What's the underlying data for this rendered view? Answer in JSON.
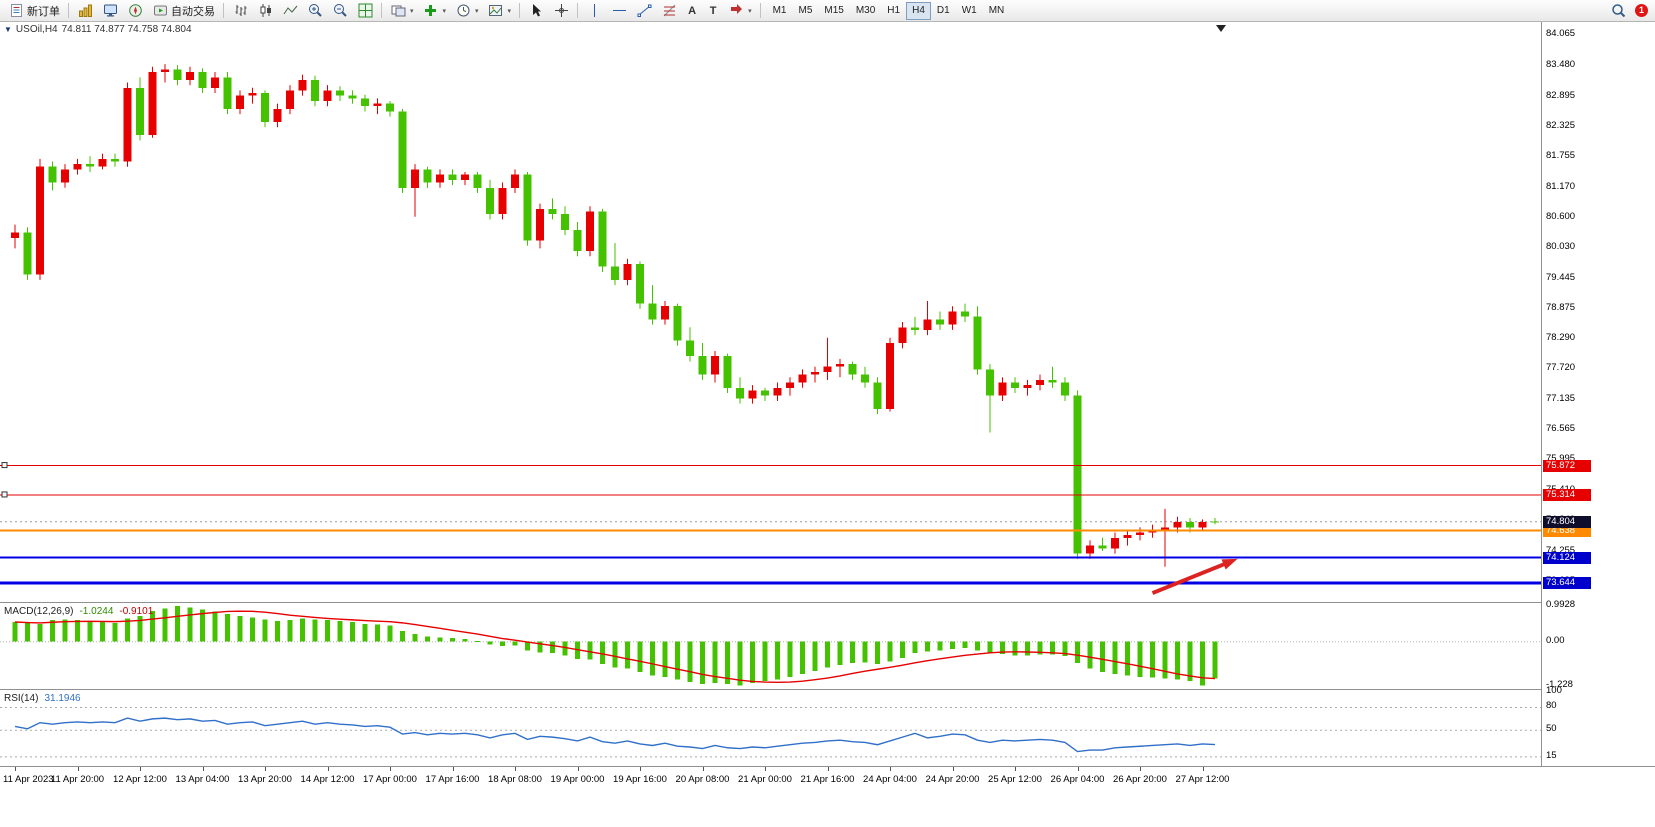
{
  "toolbar": {
    "new_order_label": "新订单",
    "autotrading_label": "自动交易",
    "text_tool_label": "A",
    "label_tool_label": "T",
    "dropdown_caret": "▾",
    "timeframes": [
      "M1",
      "M5",
      "M15",
      "M30",
      "H1",
      "H4",
      "D1",
      "W1",
      "MN"
    ],
    "active_timeframe": "H4",
    "notification_count": "1"
  },
  "header": {
    "collapse_glyph": "▼",
    "symbol": "USOil,H4",
    "ohlc": "74.811 74.877 74.758 74.804"
  },
  "chart_data": {
    "type": "candlestick",
    "title": "USOil,H4",
    "ylim": [
      73.28,
      84.3
    ],
    "y_ticks": [
      "84.065",
      "83.480",
      "82.895",
      "82.325",
      "81.755",
      "81.170",
      "80.600",
      "80.030",
      "79.445",
      "78.875",
      "78.290",
      "77.720",
      "77.135",
      "76.565",
      "75.995",
      "75.410",
      "74.840",
      "74.255",
      "73.685"
    ],
    "x_labels": [
      "11 Apr 2023",
      "11 Apr 20:00",
      "12 Apr 12:00",
      "13 Apr 04:00",
      "13 Apr 20:00",
      "14 Apr 12:00",
      "17 Apr 00:00",
      "17 Apr 16:00",
      "18 Apr 08:00",
      "19 Apr 00:00",
      "19 Apr 16:00",
      "20 Apr 08:00",
      "21 Apr 00:00",
      "21 Apr 16:00",
      "24 Apr 04:00",
      "24 Apr 20:00",
      "25 Apr 12:00",
      "26 Apr 04:00",
      "26 Apr 20:00",
      "27 Apr 12:00"
    ],
    "colors": {
      "bull": "#e60000",
      "bear": "#44c200",
      "macd_hist": "#44c200",
      "macd_signal": "#e60000",
      "rsi_line": "#3070c8"
    },
    "candles": [
      [
        80.2,
        80.45,
        80.0,
        80.3
      ],
      [
        80.3,
        80.4,
        79.4,
        79.5
      ],
      [
        79.5,
        81.7,
        79.4,
        81.55
      ],
      [
        81.55,
        81.65,
        81.1,
        81.25
      ],
      [
        81.25,
        81.6,
        81.15,
        81.5
      ],
      [
        81.5,
        81.7,
        81.4,
        81.6
      ],
      [
        81.6,
        81.75,
        81.45,
        81.55
      ],
      [
        81.55,
        81.8,
        81.5,
        81.7
      ],
      [
        81.7,
        81.8,
        81.55,
        81.65
      ],
      [
        81.65,
        83.15,
        81.55,
        83.05
      ],
      [
        83.05,
        83.25,
        82.05,
        82.15
      ],
      [
        82.15,
        83.45,
        82.1,
        83.35
      ],
      [
        83.35,
        83.5,
        83.15,
        83.4
      ],
      [
        83.4,
        83.48,
        83.1,
        83.2
      ],
      [
        83.2,
        83.45,
        83.1,
        83.35
      ],
      [
        83.35,
        83.42,
        82.95,
        83.05
      ],
      [
        83.05,
        83.35,
        82.95,
        83.25
      ],
      [
        83.25,
        83.35,
        82.55,
        82.65
      ],
      [
        82.65,
        83.0,
        82.55,
        82.9
      ],
      [
        82.9,
        83.05,
        82.75,
        82.95
      ],
      [
        82.95,
        83.0,
        82.3,
        82.4
      ],
      [
        82.4,
        82.75,
        82.3,
        82.65
      ],
      [
        82.65,
        83.1,
        82.55,
        83.0
      ],
      [
        83.0,
        83.3,
        82.9,
        83.2
      ],
      [
        83.2,
        83.28,
        82.7,
        82.8
      ],
      [
        82.8,
        83.1,
        82.7,
        83.0
      ],
      [
        83.0,
        83.08,
        82.8,
        82.9
      ],
      [
        82.9,
        83.0,
        82.75,
        82.85
      ],
      [
        82.85,
        82.92,
        82.6,
        82.7
      ],
      [
        82.7,
        82.85,
        82.55,
        82.75
      ],
      [
        82.75,
        82.8,
        82.5,
        82.6
      ],
      [
        82.6,
        82.65,
        81.05,
        81.15
      ],
      [
        81.15,
        81.6,
        80.6,
        81.5
      ],
      [
        81.5,
        81.55,
        81.15,
        81.25
      ],
      [
        81.25,
        81.5,
        81.15,
        81.4
      ],
      [
        81.4,
        81.5,
        81.2,
        81.3
      ],
      [
        81.3,
        81.45,
        81.2,
        81.4
      ],
      [
        81.4,
        81.45,
        81.05,
        81.15
      ],
      [
        81.15,
        81.3,
        80.55,
        80.65
      ],
      [
        80.65,
        81.25,
        80.55,
        81.15
      ],
      [
        81.15,
        81.5,
        81.05,
        81.4
      ],
      [
        81.4,
        81.45,
        80.05,
        80.15
      ],
      [
        80.15,
        80.85,
        80.0,
        80.75
      ],
      [
        80.75,
        80.95,
        80.55,
        80.65
      ],
      [
        80.65,
        80.8,
        80.25,
        80.35
      ],
      [
        80.35,
        80.5,
        79.85,
        79.95
      ],
      [
        79.95,
        80.8,
        79.85,
        80.7
      ],
      [
        80.7,
        80.75,
        79.55,
        79.65
      ],
      [
        79.65,
        80.1,
        79.3,
        79.4
      ],
      [
        79.4,
        79.8,
        79.3,
        79.7
      ],
      [
        79.7,
        79.75,
        78.85,
        78.95
      ],
      [
        78.95,
        79.3,
        78.55,
        78.65
      ],
      [
        78.65,
        79.0,
        78.55,
        78.9
      ],
      [
        78.9,
        78.95,
        78.15,
        78.25
      ],
      [
        78.25,
        78.5,
        77.85,
        77.95
      ],
      [
        77.95,
        78.2,
        77.5,
        77.6
      ],
      [
        77.6,
        78.05,
        77.45,
        77.95
      ],
      [
        77.95,
        78.0,
        77.25,
        77.35
      ],
      [
        77.35,
        77.55,
        77.05,
        77.15
      ],
      [
        77.15,
        77.4,
        77.05,
        77.3
      ],
      [
        77.3,
        77.35,
        77.1,
        77.2
      ],
      [
        77.2,
        77.45,
        77.1,
        77.35
      ],
      [
        77.35,
        77.55,
        77.2,
        77.45
      ],
      [
        77.45,
        77.7,
        77.35,
        77.6
      ],
      [
        77.6,
        77.75,
        77.45,
        77.65
      ],
      [
        77.65,
        78.3,
        77.5,
        77.75
      ],
      [
        77.75,
        77.9,
        77.55,
        77.8
      ],
      [
        77.8,
        77.85,
        77.5,
        77.6
      ],
      [
        77.6,
        77.75,
        77.35,
        77.45
      ],
      [
        77.45,
        77.55,
        76.85,
        76.95
      ],
      [
        76.95,
        78.3,
        76.9,
        78.2
      ],
      [
        78.2,
        78.6,
        78.1,
        78.5
      ],
      [
        78.5,
        78.7,
        78.35,
        78.45
      ],
      [
        78.45,
        79.0,
        78.35,
        78.65
      ],
      [
        78.65,
        78.8,
        78.45,
        78.55
      ],
      [
        78.55,
        78.9,
        78.45,
        78.8
      ],
      [
        78.8,
        78.95,
        78.6,
        78.7
      ],
      [
        78.7,
        78.9,
        77.6,
        77.7
      ],
      [
        77.7,
        77.8,
        76.5,
        77.2
      ],
      [
        77.2,
        77.55,
        77.1,
        77.45
      ],
      [
        77.45,
        77.55,
        77.25,
        77.35
      ],
      [
        77.35,
        77.5,
        77.2,
        77.4
      ],
      [
        77.4,
        77.6,
        77.3,
        77.5
      ],
      [
        77.5,
        77.75,
        77.35,
        77.45
      ],
      [
        77.45,
        77.55,
        77.1,
        77.2
      ],
      [
        77.2,
        77.3,
        74.1,
        74.2
      ],
      [
        74.2,
        74.45,
        74.1,
        74.35
      ],
      [
        74.35,
        74.5,
        74.25,
        74.3
      ],
      [
        74.3,
        74.6,
        74.2,
        74.5
      ],
      [
        74.5,
        74.65,
        74.35,
        74.55
      ],
      [
        74.55,
        74.7,
        74.45,
        74.6
      ],
      [
        74.6,
        74.75,
        74.5,
        74.65
      ],
      [
        74.65,
        75.05,
        73.95,
        74.7
      ],
      [
        74.7,
        74.9,
        74.6,
        74.8
      ],
      [
        74.8,
        74.877,
        74.6,
        74.7
      ],
      [
        74.7,
        74.85,
        74.65,
        74.8
      ],
      [
        74.811,
        74.877,
        74.758,
        74.804
      ]
    ],
    "hlines": [
      {
        "label": "75.872",
        "price": 75.872,
        "color": "#e60000",
        "width": 1,
        "tag_bg": "#e60000",
        "handles": true
      },
      {
        "label": "75.314",
        "price": 75.314,
        "color": "#e60000",
        "width": 1,
        "tag_bg": "#e60000",
        "handles": true
      },
      {
        "label": "74.638",
        "price": 74.638,
        "color": "#ff8a00",
        "width": 2,
        "tag_bg": "#ff8a00",
        "handles": false
      },
      {
        "label": "74.124",
        "price": 74.124,
        "color": "#0000e6",
        "width": 2,
        "tag_bg": "#0000cd",
        "handles": false
      },
      {
        "label": "73.644",
        "price": 73.644,
        "color": "#0000e6",
        "width": 3,
        "tag_bg": "#0000cd",
        "handles": false
      }
    ],
    "current_price": {
      "label": "74.804",
      "value": 74.804,
      "tag_bg": "#0e0e2c"
    },
    "arrow": {
      "bar1": 91,
      "price1": 73.45,
      "bar2": 97.8,
      "price2": 74.1,
      "color": "#dd2222",
      "width": 4
    },
    "macd": {
      "name": "MACD(12,26,9)",
      "value1": "-1.0244",
      "value2": "-0.9101",
      "range": [
        1.08,
        -1.32
      ],
      "axis": [
        {
          "label": "0.9928",
          "value": 0.9928
        },
        {
          "label": "0.00",
          "value": 0
        },
        {
          "label": "-1.228",
          "value": -1.228
        }
      ],
      "values": [
        0.55,
        0.52,
        0.5,
        0.6,
        0.62,
        0.6,
        0.58,
        0.55,
        0.52,
        0.65,
        0.72,
        0.85,
        0.92,
        0.9928,
        0.95,
        0.9,
        0.84,
        0.78,
        0.72,
        0.68,
        0.62,
        0.58,
        0.6,
        0.65,
        0.62,
        0.6,
        0.58,
        0.55,
        0.5,
        0.48,
        0.45,
        0.3,
        0.22,
        0.15,
        0.12,
        0.1,
        0.08,
        0.02,
        -0.08,
        -0.12,
        -0.1,
        -0.25,
        -0.3,
        -0.32,
        -0.38,
        -0.48,
        -0.5,
        -0.62,
        -0.72,
        -0.75,
        -0.85,
        -0.95,
        -0.98,
        -1.05,
        -1.12,
        -1.18,
        -1.15,
        -1.18,
        -1.22,
        -1.15,
        -1.1,
        -1.05,
        -0.98,
        -0.9,
        -0.82,
        -0.72,
        -0.65,
        -0.6,
        -0.58,
        -0.62,
        -0.55,
        -0.45,
        -0.32,
        -0.28,
        -0.25,
        -0.2,
        -0.18,
        -0.25,
        -0.32,
        -0.35,
        -0.38,
        -0.38,
        -0.36,
        -0.36,
        -0.4,
        -0.6,
        -0.75,
        -0.85,
        -0.9,
        -0.95,
        -0.98,
        -1.0,
        -1.02,
        -1.05,
        -1.1,
        -1.228,
        -1.0244
      ]
    },
    "rsi": {
      "name": "RSI(14)",
      "value": "31.1946",
      "range": [
        103,
        3
      ],
      "levels": [
        80,
        50,
        15
      ],
      "axis": [
        {
          "label": "100",
          "value": 100
        },
        {
          "label": "80",
          "value": 80
        },
        {
          "label": "50",
          "value": 50
        },
        {
          "label": "15",
          "value": 15
        }
      ],
      "values": [
        55,
        52,
        60,
        58,
        60,
        61,
        60,
        61,
        60,
        66,
        62,
        65,
        66,
        64,
        65,
        62,
        63,
        58,
        60,
        61,
        56,
        58,
        60,
        62,
        58,
        60,
        58,
        57,
        55,
        56,
        54,
        45,
        47,
        44,
        46,
        45,
        46,
        44,
        40,
        44,
        46,
        38,
        42,
        41,
        39,
        36,
        41,
        35,
        33,
        36,
        32,
        30,
        33,
        29,
        28,
        26,
        30,
        27,
        26,
        28,
        27,
        29,
        31,
        33,
        34,
        36,
        37,
        35,
        34,
        31,
        36,
        41,
        46,
        40,
        42,
        45,
        44,
        37,
        34,
        37,
        36,
        37,
        38,
        37,
        34,
        22,
        24,
        24,
        27,
        28,
        29,
        30,
        31,
        32,
        30,
        32,
        31.1946
      ]
    }
  }
}
